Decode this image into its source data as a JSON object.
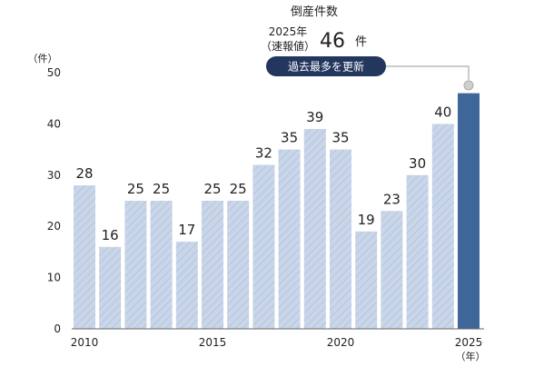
{
  "chart_data": {
    "type": "bar",
    "title": "倒産件数",
    "subtitle_line1": "2025年",
    "subtitle_line2": "（速報値）",
    "highlight_value_text": "46",
    "highlight_unit": "件",
    "badge_text": "過去最多を更新",
    "y_unit": "（件）",
    "x_unit": "（年）",
    "ylim": [
      0,
      50
    ],
    "yticks": [
      0,
      10,
      20,
      30,
      40,
      50
    ],
    "categories": [
      "2010",
      "2011",
      "2012",
      "2013",
      "2014",
      "2015",
      "2016",
      "2017",
      "2018",
      "2019",
      "2020",
      "2021",
      "2022",
      "2023",
      "2024",
      "2025"
    ],
    "x_tick_labels": [
      "2010",
      "2015",
      "2020",
      "2025"
    ],
    "values": [
      28,
      16,
      25,
      25,
      17,
      25,
      25,
      32,
      35,
      39,
      35,
      19,
      23,
      30,
      40,
      46
    ],
    "data_labels": [
      "28",
      "16",
      "25",
      "25",
      "17",
      "25",
      "25",
      "32",
      "35",
      "39",
      "35",
      "19",
      "23",
      "30",
      "40",
      ""
    ],
    "highlight_index": 15,
    "grid": false,
    "colors": {
      "bar": "#c9d5e8",
      "bar_hatch": "#b6c6de",
      "highlight_bar": "#3e6699",
      "badge": "#23365d",
      "badge_text": "#ffffff",
      "axis": "#666666",
      "text": "#222222",
      "leader": "#999999",
      "marker": "#cfcfcf"
    }
  }
}
